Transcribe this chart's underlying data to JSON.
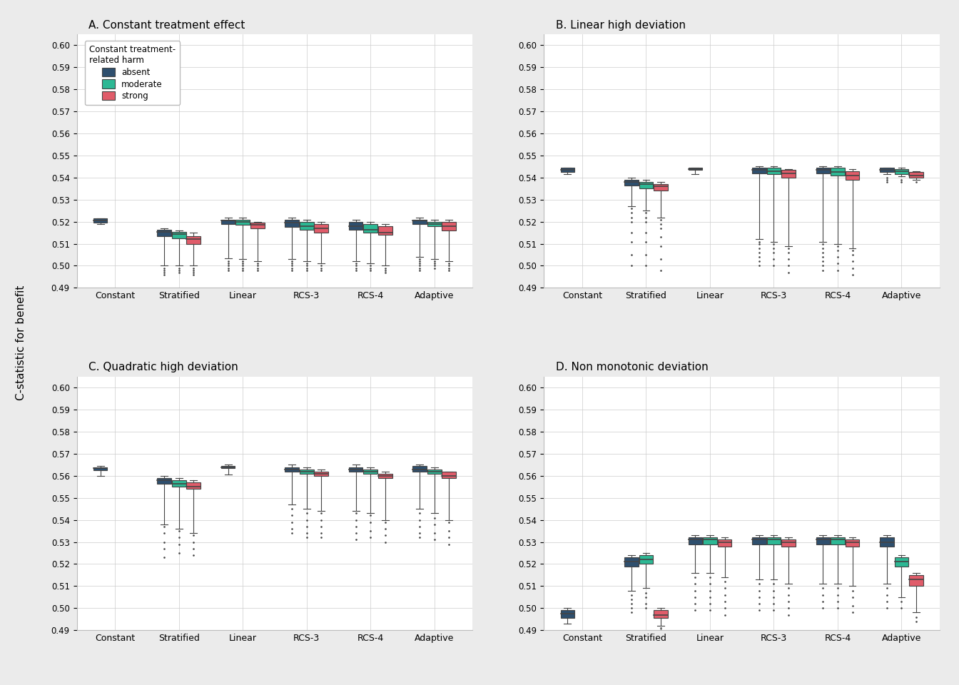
{
  "titles": [
    "A. Constant treatment effect",
    "B. Linear high deviation",
    "C. Quadratic high deviation",
    "D. Non monotonic deviation"
  ],
  "categories": [
    "Constant",
    "Stratified",
    "Linear",
    "RCS-3",
    "RCS-4",
    "Adaptive"
  ],
  "harm_levels": [
    "absent",
    "moderate",
    "strong"
  ],
  "colors": [
    "#2E4F6E",
    "#2DB894",
    "#E05C6A"
  ],
  "ylim": [
    0.49,
    0.605
  ],
  "yticks": [
    0.49,
    0.5,
    0.51,
    0.52,
    0.53,
    0.54,
    0.55,
    0.56,
    0.57,
    0.58,
    0.59,
    0.6
  ],
  "ylabel": "C-statistic for benefit",
  "legend_title": "Constant treatment-\nrelated harm",
  "panels": {
    "A": {
      "Constant": {
        "absent": {
          "q1": 0.5195,
          "median": 0.5205,
          "q3": 0.5215,
          "whislo": 0.519,
          "whishi": 0.5215,
          "fliers_lo": [],
          "fliers_hi": []
        },
        "moderate": null,
        "strong": null
      },
      "Stratified": {
        "absent": {
          "q1": 0.5135,
          "median": 0.5155,
          "q3": 0.5165,
          "whislo": 0.5,
          "whishi": 0.517,
          "fliers_lo": [
            0.499,
            0.498,
            0.497,
            0.496
          ],
          "fliers_hi": []
        },
        "moderate": {
          "q1": 0.5125,
          "median": 0.5145,
          "q3": 0.5155,
          "whislo": 0.5,
          "whishi": 0.516,
          "fliers_lo": [
            0.499,
            0.498,
            0.497
          ],
          "fliers_hi": []
        },
        "strong": {
          "q1": 0.51,
          "median": 0.512,
          "q3": 0.5135,
          "whislo": 0.5,
          "whishi": 0.515,
          "fliers_lo": [
            0.499,
            0.498,
            0.497,
            0.496
          ],
          "fliers_hi": []
        }
      },
      "Linear": {
        "absent": {
          "q1": 0.519,
          "median": 0.5205,
          "q3": 0.521,
          "whislo": 0.5035,
          "whishi": 0.522,
          "fliers_lo": [
            0.502,
            0.501,
            0.5,
            0.499,
            0.498
          ],
          "fliers_hi": []
        },
        "moderate": {
          "q1": 0.5185,
          "median": 0.52,
          "q3": 0.521,
          "whislo": 0.503,
          "whishi": 0.522,
          "fliers_lo": [
            0.502,
            0.501,
            0.5,
            0.499,
            0.498
          ],
          "fliers_hi": []
        },
        "strong": {
          "q1": 0.517,
          "median": 0.5185,
          "q3": 0.5195,
          "whislo": 0.502,
          "whishi": 0.52,
          "fliers_lo": [
            0.501,
            0.5,
            0.499,
            0.498
          ],
          "fliers_hi": []
        }
      },
      "RCS-3": {
        "absent": {
          "q1": 0.5175,
          "median": 0.5195,
          "q3": 0.521,
          "whislo": 0.503,
          "whishi": 0.522,
          "fliers_lo": [
            0.502,
            0.501,
            0.5,
            0.499,
            0.498
          ],
          "fliers_hi": []
        },
        "moderate": {
          "q1": 0.5165,
          "median": 0.518,
          "q3": 0.52,
          "whislo": 0.502,
          "whishi": 0.521,
          "fliers_lo": [
            0.501,
            0.5,
            0.499,
            0.498
          ],
          "fliers_hi": []
        },
        "strong": {
          "q1": 0.515,
          "median": 0.517,
          "q3": 0.519,
          "whislo": 0.501,
          "whishi": 0.52,
          "fliers_lo": [
            0.5,
            0.499,
            0.498
          ],
          "fliers_hi": []
        }
      },
      "RCS-4": {
        "absent": {
          "q1": 0.5165,
          "median": 0.518,
          "q3": 0.52,
          "whislo": 0.502,
          "whishi": 0.521,
          "fliers_lo": [
            0.501,
            0.5,
            0.499,
            0.498
          ],
          "fliers_hi": []
        },
        "moderate": {
          "q1": 0.515,
          "median": 0.5165,
          "q3": 0.519,
          "whislo": 0.501,
          "whishi": 0.52,
          "fliers_lo": [
            0.5,
            0.499,
            0.498
          ],
          "fliers_hi": []
        },
        "strong": {
          "q1": 0.514,
          "median": 0.515,
          "q3": 0.518,
          "whislo": 0.5,
          "whishi": 0.519,
          "fliers_lo": [
            0.499,
            0.498,
            0.497
          ],
          "fliers_hi": []
        }
      },
      "Adaptive": {
        "absent": {
          "q1": 0.519,
          "median": 0.5205,
          "q3": 0.521,
          "whislo": 0.504,
          "whishi": 0.522,
          "fliers_lo": [
            0.503,
            0.502,
            0.501,
            0.5,
            0.499,
            0.498
          ],
          "fliers_hi": []
        },
        "moderate": {
          "q1": 0.518,
          "median": 0.519,
          "q3": 0.52,
          "whislo": 0.503,
          "whishi": 0.521,
          "fliers_lo": [
            0.502,
            0.501,
            0.5,
            0.499
          ],
          "fliers_hi": []
        },
        "strong": {
          "q1": 0.516,
          "median": 0.518,
          "q3": 0.52,
          "whislo": 0.502,
          "whishi": 0.521,
          "fliers_lo": [
            0.501,
            0.5,
            0.499,
            0.498
          ],
          "fliers_hi": []
        }
      }
    },
    "B": {
      "Constant": {
        "absent": {
          "q1": 0.5425,
          "median": 0.5435,
          "q3": 0.5445,
          "whislo": 0.5415,
          "whishi": 0.5445,
          "fliers_lo": [],
          "fliers_hi": []
        },
        "moderate": null,
        "strong": null
      },
      "Stratified": {
        "absent": {
          "q1": 0.5365,
          "median": 0.538,
          "q3": 0.539,
          "whislo": 0.527,
          "whishi": 0.54,
          "fliers_lo": [
            0.526,
            0.524,
            0.522,
            0.52,
            0.515,
            0.511,
            0.505,
            0.5
          ],
          "fliers_hi": []
        },
        "moderate": {
          "q1": 0.535,
          "median": 0.537,
          "q3": 0.538,
          "whislo": 0.525,
          "whishi": 0.539,
          "fliers_lo": [
            0.524,
            0.522,
            0.52,
            0.515,
            0.511,
            0.505,
            0.5
          ],
          "fliers_hi": []
        },
        "strong": {
          "q1": 0.534,
          "median": 0.536,
          "q3": 0.537,
          "whislo": 0.522,
          "whishi": 0.538,
          "fliers_lo": [
            0.521,
            0.519,
            0.517,
            0.513,
            0.509,
            0.503,
            0.498
          ],
          "fliers_hi": []
        }
      },
      "Linear": {
        "absent": {
          "q1": 0.5435,
          "median": 0.544,
          "q3": 0.5445,
          "whislo": 0.5415,
          "whishi": 0.5445,
          "fliers_lo": [],
          "fliers_hi": []
        },
        "moderate": null,
        "strong": null
      },
      "RCS-3": {
        "absent": {
          "q1": 0.542,
          "median": 0.5435,
          "q3": 0.5445,
          "whislo": 0.512,
          "whishi": 0.545,
          "fliers_lo": [
            0.511,
            0.51,
            0.508,
            0.506,
            0.504,
            0.502,
            0.5
          ],
          "fliers_hi": []
        },
        "moderate": {
          "q1": 0.5415,
          "median": 0.543,
          "q3": 0.5445,
          "whislo": 0.511,
          "whishi": 0.545,
          "fliers_lo": [
            0.51,
            0.508,
            0.506,
            0.503,
            0.5
          ],
          "fliers_hi": []
        },
        "strong": {
          "q1": 0.54,
          "median": 0.542,
          "q3": 0.5435,
          "whislo": 0.509,
          "whishi": 0.544,
          "fliers_lo": [
            0.508,
            0.506,
            0.503,
            0.5,
            0.497
          ],
          "fliers_hi": []
        }
      },
      "RCS-4": {
        "absent": {
          "q1": 0.542,
          "median": 0.5435,
          "q3": 0.5445,
          "whislo": 0.511,
          "whishi": 0.545,
          "fliers_lo": [
            0.51,
            0.508,
            0.506,
            0.504,
            0.502,
            0.5,
            0.498
          ],
          "fliers_hi": []
        },
        "moderate": {
          "q1": 0.541,
          "median": 0.5425,
          "q3": 0.5445,
          "whislo": 0.51,
          "whishi": 0.545,
          "fliers_lo": [
            0.509,
            0.507,
            0.504,
            0.501,
            0.498
          ],
          "fliers_hi": []
        },
        "strong": {
          "q1": 0.539,
          "median": 0.541,
          "q3": 0.543,
          "whislo": 0.508,
          "whishi": 0.544,
          "fliers_lo": [
            0.507,
            0.505,
            0.502,
            0.499,
            0.496
          ],
          "fliers_hi": []
        }
      },
      "Adaptive": {
        "absent": {
          "q1": 0.5425,
          "median": 0.5435,
          "q3": 0.5445,
          "whislo": 0.5415,
          "whishi": 0.5445,
          "fliers_lo": [
            0.54,
            0.539,
            0.538
          ],
          "fliers_hi": []
        },
        "moderate": {
          "q1": 0.5415,
          "median": 0.543,
          "q3": 0.544,
          "whislo": 0.5405,
          "whishi": 0.5445,
          "fliers_lo": [
            0.539,
            0.538
          ],
          "fliers_hi": []
        },
        "strong": {
          "q1": 0.54,
          "median": 0.541,
          "q3": 0.5425,
          "whislo": 0.539,
          "whishi": 0.543,
          "fliers_lo": [
            0.538
          ],
          "fliers_hi": []
        }
      }
    },
    "C": {
      "Constant": {
        "absent": {
          "q1": 0.5625,
          "median": 0.5635,
          "q3": 0.564,
          "whislo": 0.56,
          "whishi": 0.5645,
          "fliers_lo": [],
          "fliers_hi": []
        },
        "moderate": null,
        "strong": null
      },
      "Stratified": {
        "absent": {
          "q1": 0.5565,
          "median": 0.558,
          "q3": 0.559,
          "whislo": 0.538,
          "whishi": 0.56,
          "fliers_lo": [
            0.537,
            0.534,
            0.53,
            0.527,
            0.523
          ],
          "fliers_hi": []
        },
        "moderate": {
          "q1": 0.555,
          "median": 0.5565,
          "q3": 0.558,
          "whislo": 0.536,
          "whishi": 0.559,
          "fliers_lo": [
            0.535,
            0.532,
            0.529,
            0.525
          ],
          "fliers_hi": []
        },
        "strong": {
          "q1": 0.554,
          "median": 0.555,
          "q3": 0.557,
          "whislo": 0.534,
          "whishi": 0.558,
          "fliers_lo": [
            0.533,
            0.53,
            0.527,
            0.524
          ],
          "fliers_hi": []
        }
      },
      "Linear": {
        "absent": {
          "q1": 0.5635,
          "median": 0.564,
          "q3": 0.5645,
          "whislo": 0.5605,
          "whishi": 0.565,
          "fliers_lo": [],
          "fliers_hi": []
        },
        "moderate": null,
        "strong": null
      },
      "RCS-3": {
        "absent": {
          "q1": 0.562,
          "median": 0.563,
          "q3": 0.564,
          "whislo": 0.547,
          "whishi": 0.565,
          "fliers_lo": [
            0.545,
            0.542,
            0.539,
            0.536,
            0.534
          ],
          "fliers_hi": []
        },
        "moderate": {
          "q1": 0.561,
          "median": 0.562,
          "q3": 0.563,
          "whislo": 0.545,
          "whishi": 0.564,
          "fliers_lo": [
            0.543,
            0.54,
            0.537,
            0.534,
            0.532
          ],
          "fliers_hi": []
        },
        "strong": {
          "q1": 0.56,
          "median": 0.561,
          "q3": 0.562,
          "whislo": 0.544,
          "whishi": 0.563,
          "fliers_lo": [
            0.543,
            0.54,
            0.537,
            0.534,
            0.532
          ],
          "fliers_hi": []
        }
      },
      "RCS-4": {
        "absent": {
          "q1": 0.562,
          "median": 0.563,
          "q3": 0.564,
          "whislo": 0.544,
          "whishi": 0.565,
          "fliers_lo": [
            0.543,
            0.54,
            0.537,
            0.534,
            0.531
          ],
          "fliers_hi": []
        },
        "moderate": {
          "q1": 0.561,
          "median": 0.562,
          "q3": 0.563,
          "whislo": 0.543,
          "whishi": 0.564,
          "fliers_lo": [
            0.542,
            0.539,
            0.535,
            0.532
          ],
          "fliers_hi": []
        },
        "strong": {
          "q1": 0.559,
          "median": 0.56,
          "q3": 0.561,
          "whislo": 0.54,
          "whishi": 0.562,
          "fliers_lo": [
            0.539,
            0.536,
            0.533,
            0.53
          ],
          "fliers_hi": []
        }
      },
      "Adaptive": {
        "absent": {
          "q1": 0.562,
          "median": 0.563,
          "q3": 0.5645,
          "whislo": 0.545,
          "whishi": 0.565,
          "fliers_lo": [
            0.543,
            0.54,
            0.537,
            0.534,
            0.532
          ],
          "fliers_hi": []
        },
        "moderate": {
          "q1": 0.561,
          "median": 0.562,
          "q3": 0.563,
          "whislo": 0.543,
          "whishi": 0.564,
          "fliers_lo": [
            0.541,
            0.538,
            0.534,
            0.531
          ],
          "fliers_hi": []
        },
        "strong": {
          "q1": 0.559,
          "median": 0.56,
          "q3": 0.562,
          "whislo": 0.54,
          "whishi": 0.562,
          "fliers_lo": [
            0.539,
            0.535,
            0.532,
            0.529
          ],
          "fliers_hi": []
        }
      }
    },
    "D": {
      "Constant": {
        "absent": {
          "q1": 0.4955,
          "median": 0.4975,
          "q3": 0.499,
          "whislo": 0.493,
          "whishi": 0.5,
          "fliers_lo": [],
          "fliers_hi": []
        },
        "moderate": null,
        "strong": null
      },
      "Stratified": {
        "absent": {
          "q1": 0.519,
          "median": 0.521,
          "q3": 0.523,
          "whislo": 0.508,
          "whishi": 0.524,
          "fliers_lo": [
            0.506,
            0.504,
            0.502,
            0.5,
            0.498
          ],
          "fliers_hi": []
        },
        "moderate": {
          "q1": 0.52,
          "median": 0.522,
          "q3": 0.524,
          "whislo": 0.509,
          "whishi": 0.525,
          "fliers_lo": [
            0.507,
            0.505,
            0.502,
            0.5
          ],
          "fliers_hi": []
        },
        "strong": {
          "q1": 0.4955,
          "median": 0.497,
          "q3": 0.499,
          "whislo": 0.492,
          "whishi": 0.5,
          "fliers_lo": [
            0.491,
            0.49
          ],
          "fliers_hi": []
        }
      },
      "Linear": {
        "absent": {
          "q1": 0.529,
          "median": 0.531,
          "q3": 0.532,
          "whislo": 0.516,
          "whishi": 0.533,
          "fliers_lo": [
            0.514,
            0.511,
            0.508,
            0.505,
            0.502,
            0.499
          ],
          "fliers_hi": []
        },
        "moderate": {
          "q1": 0.529,
          "median": 0.531,
          "q3": 0.532,
          "whislo": 0.516,
          "whishi": 0.533,
          "fliers_lo": [
            0.514,
            0.511,
            0.508,
            0.505,
            0.502,
            0.499
          ],
          "fliers_hi": []
        },
        "strong": {
          "q1": 0.528,
          "median": 0.53,
          "q3": 0.531,
          "whislo": 0.514,
          "whishi": 0.532,
          "fliers_lo": [
            0.512,
            0.509,
            0.506,
            0.503,
            0.5,
            0.497
          ],
          "fliers_hi": []
        }
      },
      "RCS-3": {
        "absent": {
          "q1": 0.529,
          "median": 0.531,
          "q3": 0.532,
          "whislo": 0.513,
          "whishi": 0.533,
          "fliers_lo": [
            0.511,
            0.508,
            0.505,
            0.502,
            0.499
          ],
          "fliers_hi": []
        },
        "moderate": {
          "q1": 0.529,
          "median": 0.531,
          "q3": 0.532,
          "whislo": 0.513,
          "whishi": 0.533,
          "fliers_lo": [
            0.511,
            0.508,
            0.505,
            0.502,
            0.499
          ],
          "fliers_hi": []
        },
        "strong": {
          "q1": 0.528,
          "median": 0.53,
          "q3": 0.531,
          "whislo": 0.511,
          "whishi": 0.532,
          "fliers_lo": [
            0.509,
            0.506,
            0.503,
            0.5,
            0.497
          ],
          "fliers_hi": []
        }
      },
      "RCS-4": {
        "absent": {
          "q1": 0.529,
          "median": 0.531,
          "q3": 0.532,
          "whislo": 0.511,
          "whishi": 0.533,
          "fliers_lo": [
            0.509,
            0.506,
            0.503,
            0.5
          ],
          "fliers_hi": []
        },
        "moderate": {
          "q1": 0.529,
          "median": 0.531,
          "q3": 0.532,
          "whislo": 0.511,
          "whishi": 0.533,
          "fliers_lo": [
            0.509,
            0.506,
            0.503,
            0.5
          ],
          "fliers_hi": []
        },
        "strong": {
          "q1": 0.528,
          "median": 0.53,
          "q3": 0.531,
          "whislo": 0.51,
          "whishi": 0.532,
          "fliers_lo": [
            0.508,
            0.505,
            0.501,
            0.498
          ],
          "fliers_hi": []
        }
      },
      "Adaptive": {
        "absent": {
          "q1": 0.528,
          "median": 0.53,
          "q3": 0.532,
          "whislo": 0.511,
          "whishi": 0.533,
          "fliers_lo": [
            0.509,
            0.506,
            0.503,
            0.5
          ],
          "fliers_hi": []
        },
        "moderate": {
          "q1": 0.519,
          "median": 0.521,
          "q3": 0.523,
          "whislo": 0.505,
          "whishi": 0.524,
          "fliers_lo": [
            0.503,
            0.5
          ],
          "fliers_hi": []
        },
        "strong": {
          "q1": 0.51,
          "median": 0.513,
          "q3": 0.515,
          "whislo": 0.498,
          "whishi": 0.516,
          "fliers_lo": [
            0.496,
            0.494
          ],
          "fliers_hi": []
        }
      }
    }
  }
}
